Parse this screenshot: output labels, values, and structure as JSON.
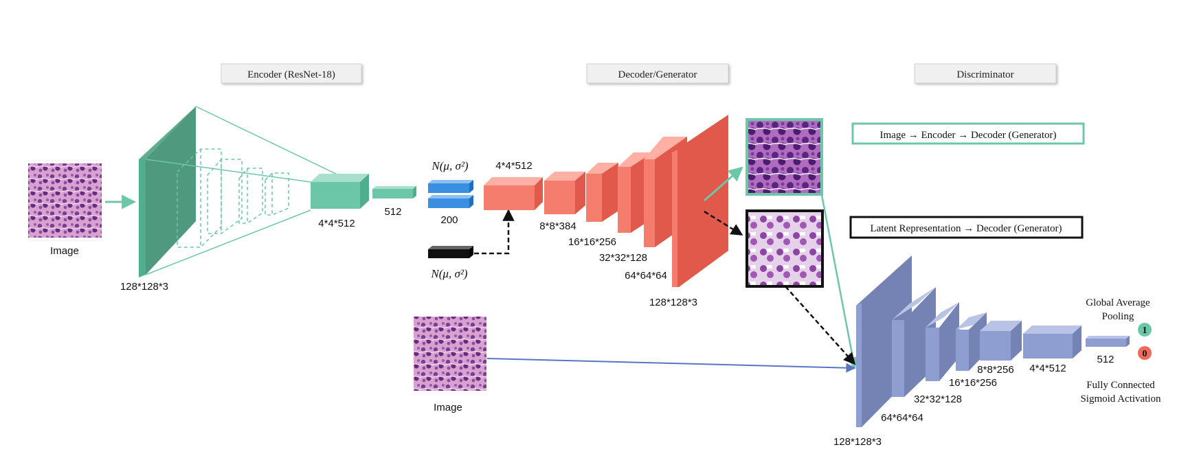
{
  "sections": {
    "encoder": "Encoder (ResNet-18)",
    "decoder": "Decoder/Generator",
    "discriminator": "Discriminator"
  },
  "encoder": {
    "input_label": "Image",
    "input_dims": "128*128*3",
    "feature_dims": "4*4*512",
    "vector_dims": "512"
  },
  "latent": {
    "dist_top": "N(μ, σ²)",
    "size": "200",
    "dist_bottom": "N(μ, σ²)"
  },
  "decoder": {
    "layers": [
      "4*4*512",
      "8*8*384",
      "16*16*256",
      "32*32*128",
      "64*64*64",
      "128*128*3"
    ]
  },
  "legend": {
    "path_encoder": "Image → Encoder → Decoder (Generator)",
    "path_latent": "Latent Representation → Decoder (Generator)"
  },
  "discriminator": {
    "real_input_label": "Image",
    "layers": [
      "128*128*3",
      "64*64*64",
      "32*32*128",
      "16*16*256",
      "8*8*256",
      "4*4*512"
    ],
    "pool_label": "Global Average Pooling",
    "vector_dims": "512",
    "fc_label": "Fully Connected",
    "sigmoid_label": "Sigmoid Activation",
    "out_real": "1",
    "out_fake": "0"
  },
  "colors": {
    "teal": "#6cc7a8",
    "red": "#f47d6e",
    "blue": "#3a8fe0",
    "purple": "#8e9ed0"
  }
}
